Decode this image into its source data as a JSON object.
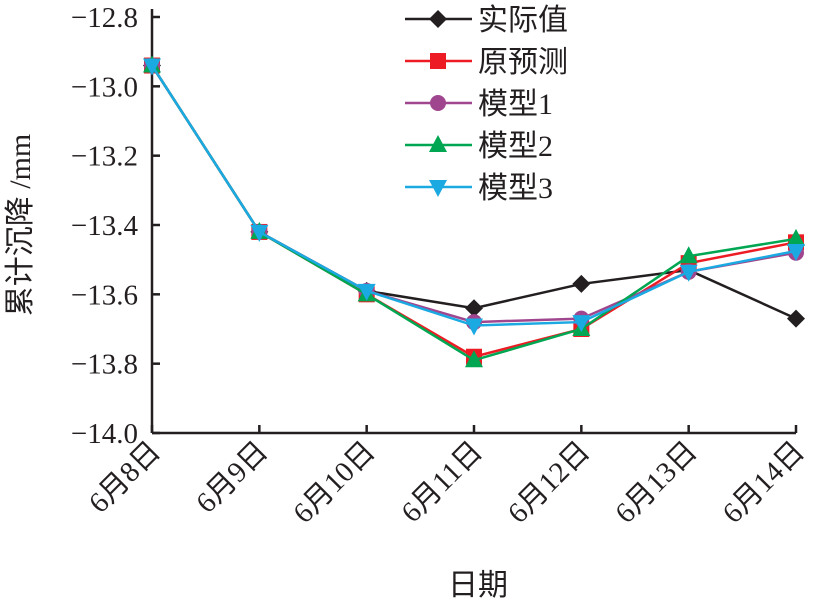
{
  "chart_data": {
    "type": "line",
    "title": "",
    "xlabel": "日期",
    "ylabel": "累计沉降 /mm",
    "ylim": [
      -14.0,
      -12.8
    ],
    "yticks": [
      "-14.0",
      "-13.8",
      "-13.6",
      "-13.4",
      "-13.2",
      "-13.0",
      "-12.8"
    ],
    "ytick_values": [
      -14.0,
      -13.8,
      -13.6,
      -13.4,
      -13.2,
      -13.0,
      -12.8
    ],
    "categories": [
      "6月8日",
      "6月9日",
      "6月10日",
      "6月11日",
      "6月12日",
      "6月13日",
      "6月14日"
    ],
    "grid": false,
    "legend_position": "top-right",
    "series": [
      {
        "name": "实际值",
        "color": "#231f20",
        "marker": "diamond",
        "values": [
          -12.94,
          -13.42,
          -13.59,
          -13.64,
          -13.57,
          -13.53,
          -13.67
        ]
      },
      {
        "name": "原预测",
        "color": "#ed1c24",
        "marker": "square",
        "values": [
          -12.94,
          -13.42,
          -13.6,
          -13.78,
          -13.7,
          -13.51,
          -13.45
        ]
      },
      {
        "name": "模型1",
        "color": "#a0468f",
        "marker": "circle",
        "values": [
          -12.94,
          -13.42,
          -13.59,
          -13.68,
          -13.67,
          -13.535,
          -13.48
        ]
      },
      {
        "name": "模型2",
        "color": "#00a651",
        "marker": "triangle-up",
        "values": [
          -12.94,
          -13.42,
          -13.6,
          -13.79,
          -13.7,
          -13.49,
          -13.44
        ]
      },
      {
        "name": "模型3",
        "color": "#1ba9e1",
        "marker": "triangle-down",
        "values": [
          -12.94,
          -13.42,
          -13.59,
          -13.69,
          -13.68,
          -13.535,
          -13.475
        ]
      }
    ]
  }
}
